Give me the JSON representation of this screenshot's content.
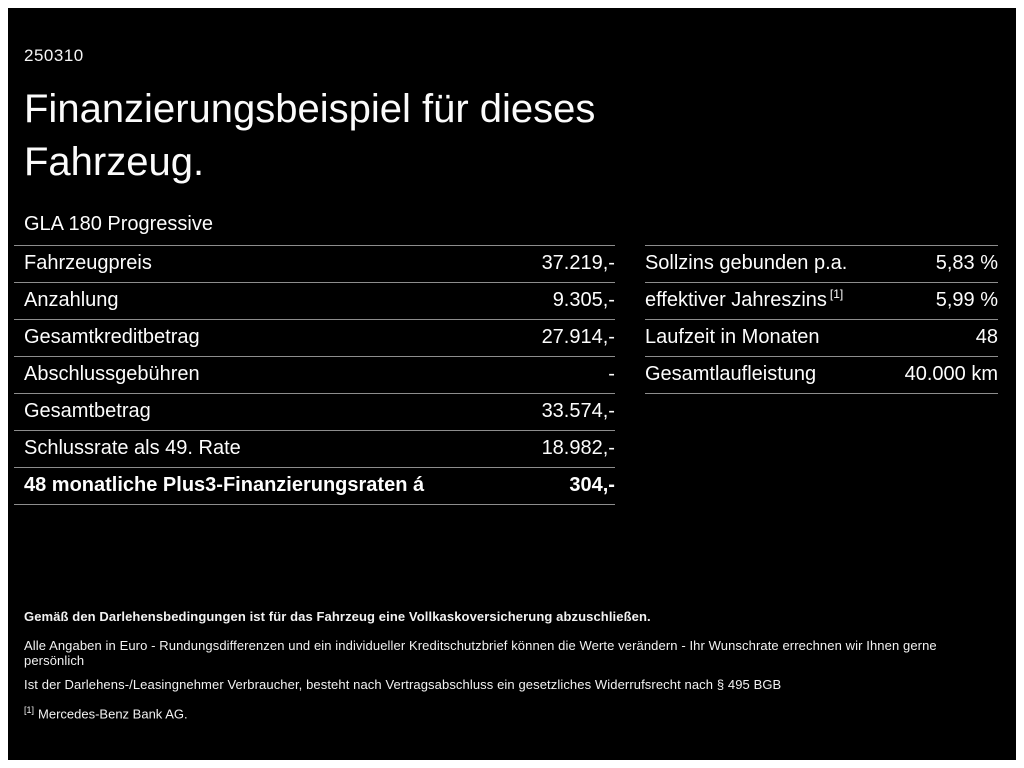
{
  "header": {
    "code": "250310",
    "title_lines": [
      "Finanzierungsbeispiel für dieses",
      "Fahrzeug."
    ],
    "model": "GLA 180 Progressive"
  },
  "finance_table": {
    "rows": [
      {
        "label": "Fahrzeugpreis",
        "value": "37.219,-"
      },
      {
        "label": "Anzahlung",
        "value": "9.305,-"
      },
      {
        "label": "Gesamtkreditbetrag",
        "value": "27.914,-"
      },
      {
        "label": "Abschlussgebühren",
        "value": "-"
      },
      {
        "label": "Gesamtbetrag",
        "value": "33.574,-"
      },
      {
        "label": "Schlussrate als 49. Rate",
        "value": "18.982,-"
      },
      {
        "label": "48 monatliche Plus3-Finanzierungsraten á",
        "value": "304,-"
      }
    ]
  },
  "conditions_table": {
    "rows": [
      {
        "label": "Sollzins gebunden p.a.",
        "sup": "",
        "value": "5,83 %"
      },
      {
        "label": "effektiver Jahreszins",
        "sup": "[1]",
        "value": "5,99 %"
      },
      {
        "label": "Laufzeit in Monaten",
        "sup": "",
        "value": "48"
      },
      {
        "label": "Gesamtlaufleistung",
        "sup": "",
        "value": "40.000 km"
      }
    ]
  },
  "footnotes": {
    "insurance": "Gemäß den Darlehensbedingungen ist für das Fahrzeug eine Vollkaskoversicherung abzuschließen.",
    "disclaimer": "Alle Angaben in Euro - Rundungsdifferenzen und ein individueller Kreditschutzbrief können die Werte verändern - Ihr Wunschrate errechnen wir Ihnen gerne persönlich",
    "withdrawal": "Ist der Darlehens-/Leasingnehmer Verbraucher, besteht nach Vertragsabschluss ein gesetzliches Widerrufsrecht nach § 495 BGB",
    "bank_sup": "[1]",
    "bank": "Mercedes-Benz Bank AG."
  }
}
